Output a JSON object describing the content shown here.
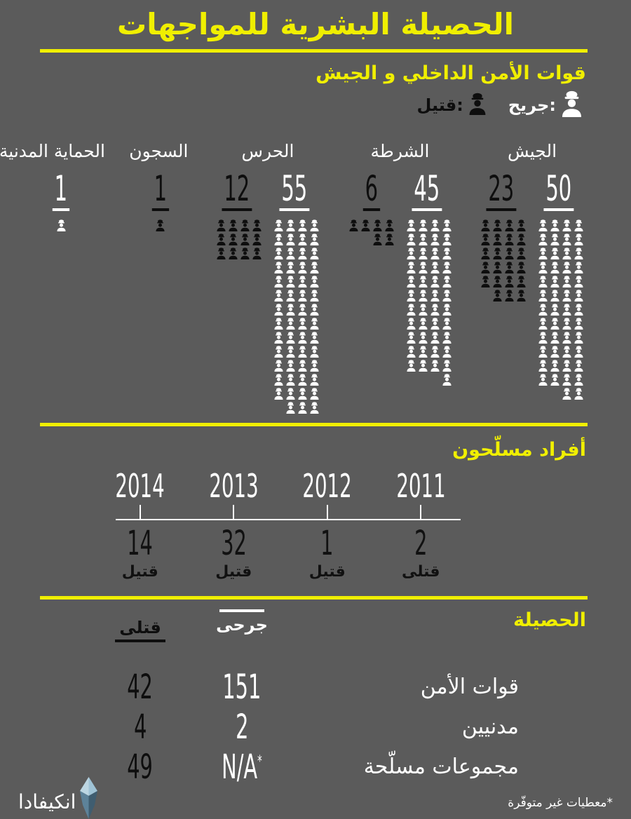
{
  "colors": {
    "background": "#5b5b5b",
    "accent": "#f0ef00",
    "killed": "#0e0e0e",
    "wounded": "#ffffff",
    "logo_blue_light": "#b9d4e2",
    "logo_blue_mid": "#6e93a8",
    "logo_blue_dark": "#3f5d70"
  },
  "header": {
    "title": "الحصيلة البشرية للمواجهات"
  },
  "forces": {
    "heading": "قوات الأمن الداخلي و الجيش",
    "legend": {
      "wounded_label": ":جريح",
      "killed_label": ":قتيل"
    },
    "categories": [
      {
        "name": "الجيش",
        "killed": 23,
        "wounded": 50
      },
      {
        "name": "الشرطة",
        "killed": 6,
        "wounded": 45
      },
      {
        "name": "الحرس",
        "killed": 12,
        "wounded": 55
      },
      {
        "name": "السجون",
        "killed": 1
      },
      {
        "name": "الحماية المدنية",
        "wounded": 1
      }
    ]
  },
  "timeline": {
    "heading": "أفراد مسلّحون",
    "items": [
      {
        "year": "2014",
        "value": 14,
        "label": "قتيل"
      },
      {
        "year": "2013",
        "value": 32,
        "label": "قتيل"
      },
      {
        "year": "2012",
        "value": 1,
        "label": "قتيل"
      },
      {
        "year": "2011",
        "value": 2,
        "label": "قتلى"
      }
    ]
  },
  "totals": {
    "heading": "الحصيلة",
    "columns": {
      "killed": "قتلى",
      "wounded": "جرحى"
    },
    "rows": [
      {
        "label": "قوات الأمن",
        "killed": "42",
        "wounded": "151",
        "wounded_note": ""
      },
      {
        "label": "مدنيين",
        "killed": "4",
        "wounded": "2",
        "wounded_note": ""
      },
      {
        "label": "مجموعات مسلّحة",
        "killed": "49",
        "wounded": "N/A",
        "wounded_note": "*"
      }
    ]
  },
  "footer": {
    "brand": "انكيفادا",
    "note": "*معطيات غير متوفّرة"
  },
  "chart_data": [
    {
      "type": "bar",
      "subtype": "pictogram",
      "title": "قوات الأمن الداخلي و الجيش",
      "categories": [
        "الجيش",
        "الشرطة",
        "الحرس",
        "السجون",
        "الحماية المدنية"
      ],
      "series": [
        {
          "name": "قتيل",
          "color": "#0e0e0e",
          "values": [
            23,
            6,
            12,
            1,
            0
          ]
        },
        {
          "name": "جريح",
          "color": "#ffffff",
          "values": [
            50,
            45,
            55,
            0,
            1
          ]
        }
      ],
      "icons_per_row": 4,
      "legend_position": "top-right"
    },
    {
      "type": "line",
      "subtype": "timeline",
      "title": "أفراد مسلّحون",
      "x": [
        "2011",
        "2012",
        "2013",
        "2014"
      ],
      "values": [
        2,
        1,
        32,
        14
      ],
      "ylabel": "قتلى",
      "grid": false
    },
    {
      "type": "table",
      "title": "الحصيلة",
      "columns": [
        "",
        "جرحى",
        "قتلى"
      ],
      "rows": [
        [
          "قوات الأمن",
          "151",
          "42"
        ],
        [
          "مدنيين",
          "2",
          "4"
        ],
        [
          "مجموعات مسلّحة",
          "N/A*",
          "49"
        ]
      ]
    }
  ]
}
